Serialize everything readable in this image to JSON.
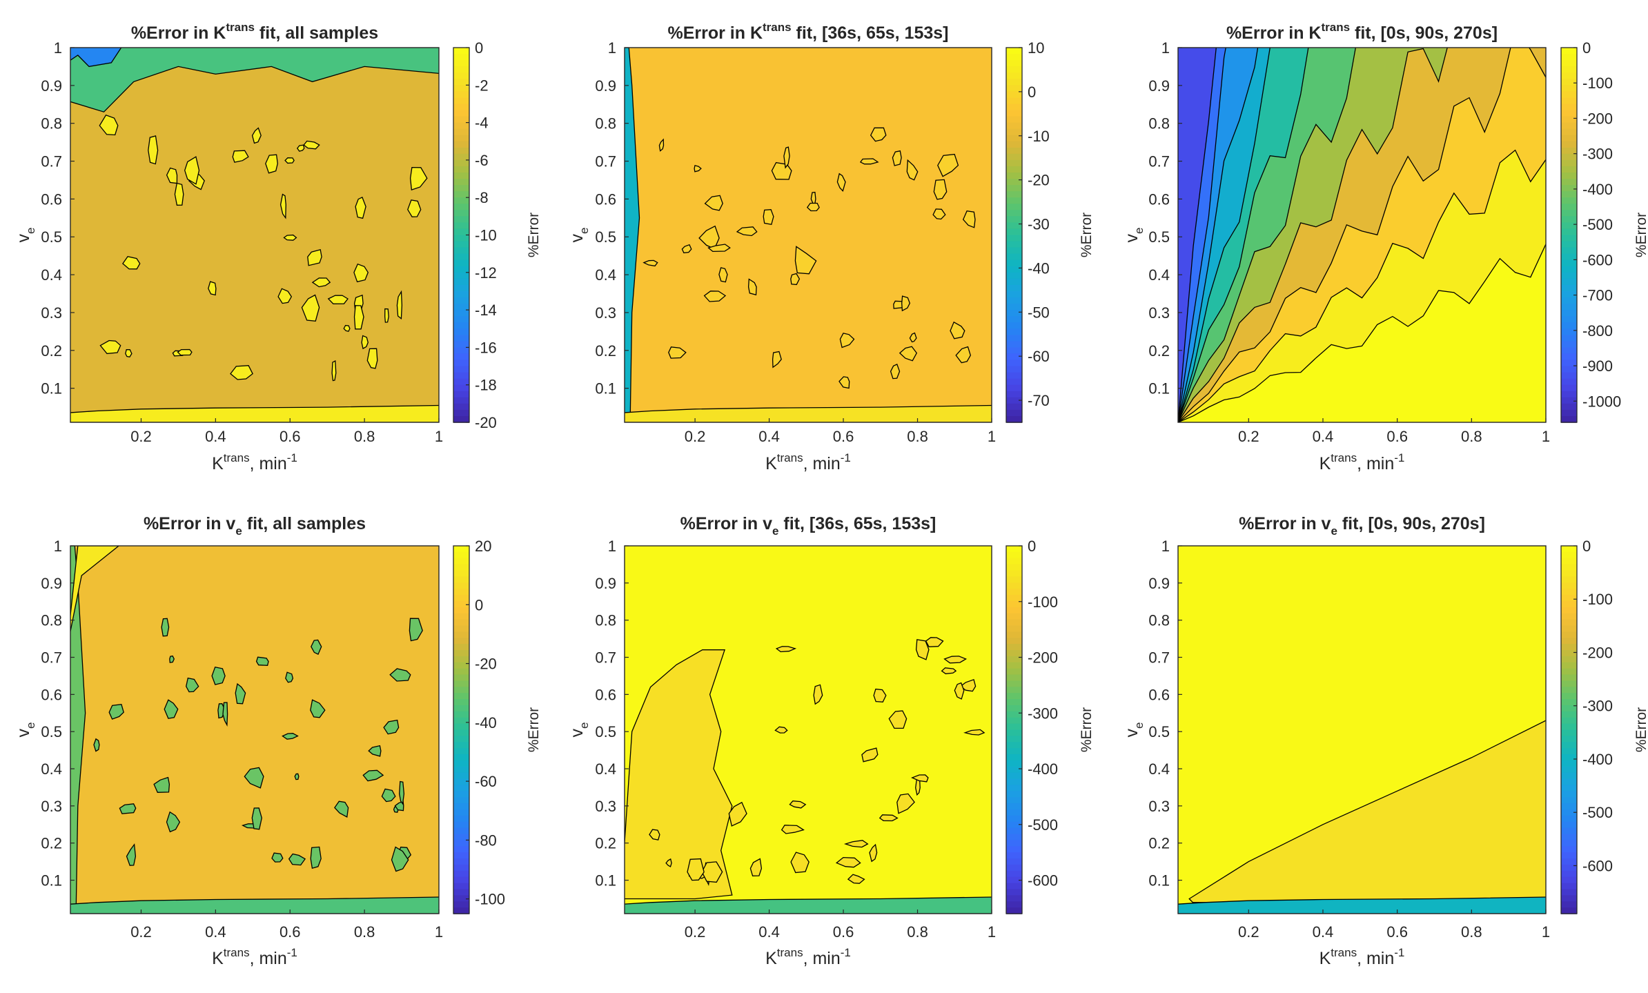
{
  "figure": {
    "colormap": [
      "#3e26a8",
      "#4744e4",
      "#3e65fd",
      "#2486f2",
      "#1ba1e2",
      "#0fb4c3",
      "#2abf9a",
      "#5cc56d",
      "#a2c044",
      "#dfb737",
      "#fcc433",
      "#f6e224",
      "#f9fb15"
    ],
    "contour_line_color": "#000000"
  },
  "chart_data": [
    {
      "type": "contour",
      "id": "p1",
      "title": {
        "pre": "%Error in K",
        "sup": "trans",
        "post": " fit, all samples"
      },
      "xlabel": {
        "pre": "K",
        "sup": "trans",
        "post": ", min",
        "sup2": "-1"
      },
      "ylabel": {
        "pre": "v",
        "sub": "e"
      },
      "xlim": [
        0.01,
        1
      ],
      "ylim": [
        0.01,
        1
      ],
      "xticks": [
        "0.2",
        "0.4",
        "0.6",
        "0.8",
        "1"
      ],
      "yticks": [
        "0.1",
        "0.2",
        "0.3",
        "0.4",
        "0.5",
        "0.6",
        "0.7",
        "0.8",
        "0.9",
        "1"
      ],
      "colorbar": {
        "label": "%Error",
        "min": -20,
        "max": 0,
        "ticks": [
          "0",
          "-2",
          "-4",
          "-6",
          "-8",
          "-10",
          "-12",
          "-14",
          "-16",
          "-18",
          "-20"
        ]
      },
      "dominant_value": -5,
      "regions": [
        {
          "desc": "top band",
          "value": -9
        },
        {
          "desc": "top-left corner",
          "value": -15
        },
        {
          "desc": "bottom strip",
          "value": -1
        }
      ]
    },
    {
      "type": "contour",
      "id": "p2",
      "title": {
        "pre": "%Error in K",
        "sup": "trans",
        "post": " fit, [36s, 65s, 153s]"
      },
      "xlabel": {
        "pre": "K",
        "sup": "trans",
        "post": ", min",
        "sup2": "-1"
      },
      "ylabel": {
        "pre": "v",
        "sub": "e"
      },
      "xlim": [
        0.01,
        1
      ],
      "ylim": [
        0.01,
        1
      ],
      "xticks": [
        "0.2",
        "0.4",
        "0.6",
        "0.8",
        "1"
      ],
      "yticks": [
        "0.1",
        "0.2",
        "0.3",
        "0.4",
        "0.5",
        "0.6",
        "0.7",
        "0.8",
        "0.9",
        "1"
      ],
      "colorbar": {
        "label": "%Error",
        "min": -75,
        "max": 10,
        "ticks": [
          "10",
          "0",
          "-10",
          "-20",
          "-30",
          "-40",
          "-50",
          "-60",
          "-70"
        ]
      },
      "dominant_value": -5,
      "regions": [
        {
          "desc": "left edge strip",
          "value": -40
        },
        {
          "desc": "bottom strip",
          "value": 3
        }
      ]
    },
    {
      "type": "contour",
      "id": "p3",
      "title": {
        "pre": "%Error in K",
        "sup": "trans",
        "post": " fit, [0s, 90s, 270s]"
      },
      "xlabel": {
        "pre": "K",
        "sup": "trans",
        "post": ", min",
        "sup2": "-1"
      },
      "ylabel": {
        "pre": "v",
        "sub": "e"
      },
      "xlim": [
        0.01,
        1
      ],
      "ylim": [
        0.01,
        1
      ],
      "xticks": [
        "0.2",
        "0.4",
        "0.6",
        "0.8",
        "1"
      ],
      "yticks": [
        "0.1",
        "0.2",
        "0.3",
        "0.4",
        "0.5",
        "0.6",
        "0.7",
        "0.8",
        "0.9",
        "1"
      ],
      "colorbar": {
        "label": "%Error",
        "min": -1060,
        "max": 0,
        "ticks": [
          "0",
          "-100",
          "-200",
          "-300",
          "-400",
          "-500",
          "-600",
          "-700",
          "-800",
          "-900",
          "-1000"
        ]
      },
      "bands_low_k_high_ve_to_high_k_low_ve": [
        -950,
        -850,
        -750,
        -650,
        -550,
        -450,
        -350,
        -250,
        -150,
        -50,
        0
      ]
    },
    {
      "type": "contour",
      "id": "p4",
      "title": {
        "pre": "%Error in v",
        "sub": "e",
        "post": " fit, all samples"
      },
      "xlabel": {
        "pre": "K",
        "sup": "trans",
        "post": ", min",
        "sup2": "-1"
      },
      "ylabel": {
        "pre": "v",
        "sub": "e"
      },
      "xlim": [
        0.01,
        1
      ],
      "ylim": [
        0.01,
        1
      ],
      "xticks": [
        "0.2",
        "0.4",
        "0.6",
        "0.8",
        "1"
      ],
      "yticks": [
        "0.1",
        "0.2",
        "0.3",
        "0.4",
        "0.5",
        "0.6",
        "0.7",
        "0.8",
        "0.9",
        "1"
      ],
      "colorbar": {
        "label": "%Error",
        "min": -105,
        "max": 20,
        "ticks": [
          "20",
          "0",
          "-20",
          "-40",
          "-60",
          "-80",
          "-100"
        ]
      },
      "dominant_value": -5,
      "regions": [
        {
          "desc": "left edge strip",
          "value": -30
        },
        {
          "desc": "top-left wedge",
          "value": 12
        },
        {
          "desc": "bottom strip",
          "value": -35
        }
      ]
    },
    {
      "type": "contour",
      "id": "p5",
      "title": {
        "pre": "%Error in v",
        "sub": "e",
        "post": " fit, [36s, 65s, 153s]"
      },
      "xlabel": {
        "pre": "K",
        "sup": "trans",
        "post": ", min",
        "sup2": "-1"
      },
      "ylabel": {
        "pre": "v",
        "sub": "e"
      },
      "xlim": [
        0.01,
        1
      ],
      "ylim": [
        0.01,
        1
      ],
      "xticks": [
        "0.2",
        "0.4",
        "0.6",
        "0.8",
        "1"
      ],
      "yticks": [
        "0.1",
        "0.2",
        "0.3",
        "0.4",
        "0.5",
        "0.6",
        "0.7",
        "0.8",
        "0.9",
        "1"
      ],
      "colorbar": {
        "label": "%Error",
        "min": -660,
        "max": 0,
        "ticks": [
          "0",
          "-100",
          "-200",
          "-300",
          "-400",
          "-500",
          "-600"
        ]
      },
      "dominant_value": -5,
      "regions": [
        {
          "desc": "lower-left lobe",
          "value": -60
        },
        {
          "desc": "bottom strip",
          "value": -300
        }
      ]
    },
    {
      "type": "contour",
      "id": "p6",
      "title": {
        "pre": "%Error in v",
        "sub": "e",
        "post": " fit, [0s, 90s, 270s]"
      },
      "xlabel": {
        "pre": "K",
        "sup": "trans",
        "post": ", min",
        "sup2": "-1"
      },
      "ylabel": {
        "pre": "v",
        "sub": "e"
      },
      "xlim": [
        0.01,
        1
      ],
      "ylim": [
        0.01,
        1
      ],
      "xticks": [
        "0.2",
        "0.4",
        "0.6",
        "0.8",
        "1"
      ],
      "yticks": [
        "0.1",
        "0.2",
        "0.3",
        "0.4",
        "0.5",
        "0.6",
        "0.7",
        "0.8",
        "0.9",
        "1"
      ],
      "colorbar": {
        "label": "%Error",
        "min": -690,
        "max": 0,
        "ticks": [
          "0",
          "-100",
          "-200",
          "-300",
          "-400",
          "-500",
          "-600"
        ]
      },
      "dominant_value": -5,
      "regions": [
        {
          "desc": "lower-right wedge",
          "value": -60
        },
        {
          "desc": "bottom strip",
          "value": -400
        }
      ]
    }
  ]
}
